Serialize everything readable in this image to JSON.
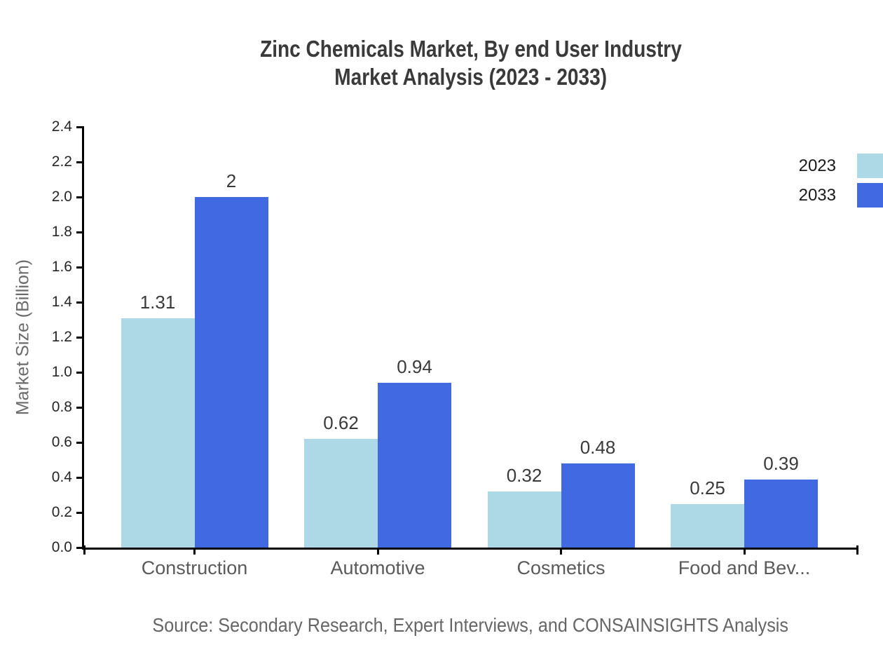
{
  "chart": {
    "title_line1": "Zinc Chemicals Market, By end User Industry",
    "title_line2": "Market Analysis (2023 - 2033)",
    "ylabel": "Market Size (Billion)",
    "source": "Source: Secondary Research, Expert Interviews, and CONSAINSIGHTS Analysis"
  },
  "chart_data": {
    "type": "bar",
    "title": "Zinc Chemicals Market, By end User Industry Market Analysis (2023 - 2033)",
    "xlabel": "",
    "ylabel": "Market Size (Billion)",
    "categories": [
      "Construction",
      "Automotive",
      "Cosmetics",
      "Food and Bev..."
    ],
    "series": [
      {
        "name": "2023",
        "color": "#ADD8E6",
        "values": [
          1.31,
          0.62,
          0.32,
          0.25
        ]
      },
      {
        "name": "2033",
        "color": "#4169E1",
        "values": [
          2,
          0.94,
          0.48,
          0.39
        ]
      }
    ],
    "value_labels": [
      [
        "1.31",
        "0.62",
        "0.32",
        "0.25"
      ],
      [
        "2",
        "0.94",
        "0.48",
        "0.39"
      ]
    ],
    "ylim": [
      0,
      2.4
    ],
    "ytick_step": 0.2,
    "yticks": [
      "0.0",
      "0.2",
      "0.4",
      "0.6",
      "0.8",
      "1.0",
      "1.2",
      "1.4",
      "1.6",
      "1.8",
      "2.0",
      "2.2",
      "2.4"
    ],
    "grid": false,
    "legend_position": "outside-upper-right",
    "source": "Source: Secondary Research, Expert Interviews, and CONSAINSIGHTS Analysis",
    "axis_color": "#000000",
    "title_color": "#3a3a3a",
    "tick_label_color": "#262626",
    "category_label_color": "#5a5a5a",
    "value_label_color": "#3a3a3a",
    "source_color": "#666666"
  }
}
